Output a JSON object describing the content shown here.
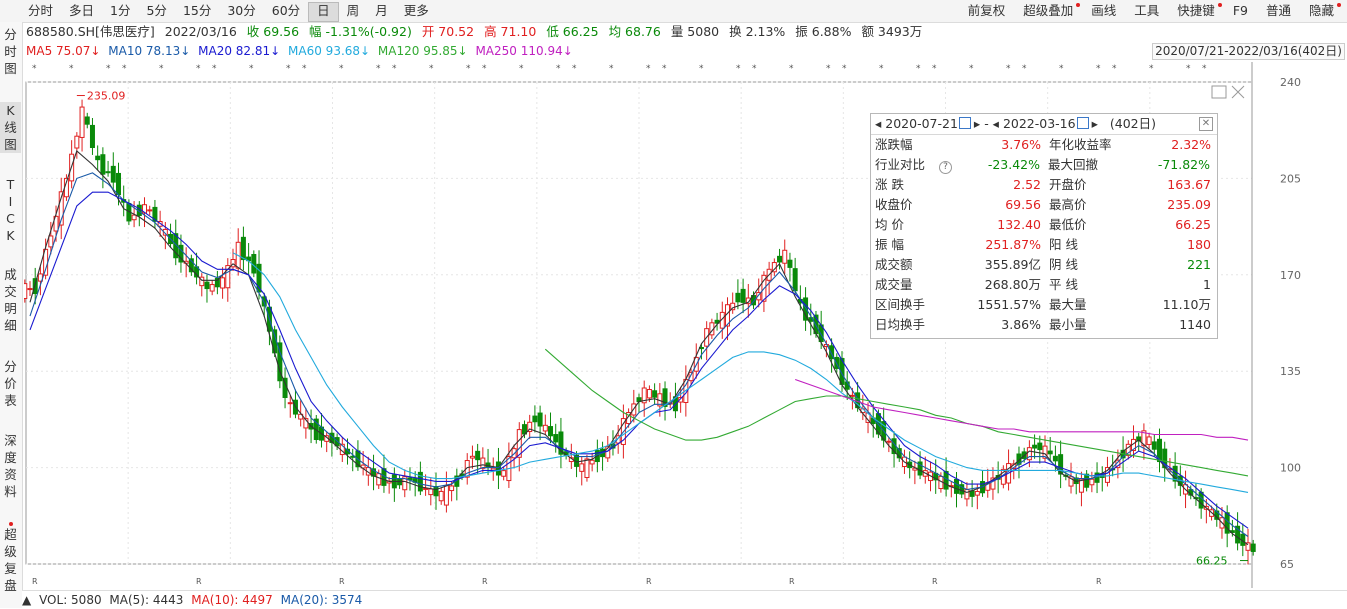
{
  "toolbar": {
    "periods": [
      "分时",
      "多日",
      "1分",
      "5分",
      "15分",
      "30分",
      "60分",
      "日",
      "周",
      "月",
      "更多"
    ],
    "active_period": "日",
    "right_items": [
      "前复权",
      "超级叠加",
      "画线",
      "工具",
      "快捷键",
      "F9",
      "普通",
      "隐藏"
    ]
  },
  "sidebar": {
    "items": [
      {
        "label": "分\n时\n图"
      },
      {
        "label": "K\n线\n图"
      },
      {
        "label": "T\nI\nC\nK"
      },
      {
        "label": "成\n交\n明\n细"
      },
      {
        "label": "分\n价\n表"
      },
      {
        "label": "深\n度\n资\n料"
      },
      {
        "label": "超\n级\n复\n盘"
      }
    ]
  },
  "info": {
    "code": "688580.SH[伟思医疗]",
    "date": "2022/03/16",
    "close": "收 69.56",
    "change": "幅 -1.31%(-0.92)",
    "open": "开 70.52",
    "high": "高 71.10",
    "low": "低 66.25",
    "avg": "均 68.76",
    "volume": "量 5080",
    "turnover": "换 2.13%",
    "amplitude": "振 6.88%",
    "amount": "额 3493万"
  },
  "ma": {
    "ma5": "MA5 75.07↓",
    "ma10": "MA10 78.13↓",
    "ma20": "MA20 82.81↓",
    "ma60": "MA60 93.68↓",
    "ma120": "MA120 95.85↓",
    "ma250": "MA250 110.94↓"
  },
  "range_label": "2020/07/21-2022/03/16(402日)",
  "colors": {
    "up": "#e02020",
    "down": "#0a8a0a",
    "ma5": "#333333",
    "ma10": "#1a5aa8",
    "ma20": "#1a1ad0",
    "ma60": "#22aadd",
    "ma120": "#33aa33",
    "ma250": "#c020c0"
  },
  "chart_data": {
    "type": "candlestick",
    "title": "688580.SH 伟思医疗 日K",
    "ylim": [
      65,
      240
    ],
    "y_ticks": [
      65,
      100,
      135,
      170,
      205,
      240
    ],
    "annotations": {
      "max_label": "235.09",
      "min_label": "66.25"
    },
    "series": [
      {
        "name": "close_trend",
        "values": [
          165,
          185,
          205,
          230,
          210,
          205,
          190,
          195,
          188,
          178,
          172,
          165,
          168,
          180,
          172,
          150,
          125,
          118,
          112,
          110,
          105,
          100,
          96,
          94,
          96,
          92,
          90,
          95,
          105,
          100,
          98,
          112,
          118,
          112,
          104,
          100,
          104,
          108,
          120,
          128,
          125,
          122,
          135,
          150,
          155,
          162,
          160,
          172,
          178,
          158,
          150,
          140,
          128,
          120,
          114,
          106,
          100,
          98,
          95,
          92,
          90,
          94,
          98,
          103,
          108,
          105,
          96,
          94,
          96,
          100,
          108,
          112,
          104,
          96,
          90,
          85,
          80,
          74,
          70
        ]
      },
      {
        "name": "MA5",
        "values": [
          160,
          180,
          198,
          215,
          210,
          204,
          194,
          191,
          187,
          180,
          174,
          168,
          168,
          174,
          170,
          155,
          135,
          122,
          115,
          111,
          106,
          101,
          97,
          95,
          95,
          93,
          92,
          94,
          100,
          101,
          100,
          108,
          114,
          112,
          106,
          102,
          103,
          107,
          116,
          124,
          125,
          123,
          132,
          145,
          152,
          158,
          160,
          168,
          174,
          162,
          152,
          142,
          130,
          122,
          115,
          108,
          102,
          99,
          96,
          93,
          91,
          93,
          97,
          101,
          106,
          105,
          98,
          95,
          96,
          99,
          106,
          110,
          105,
          98,
          92,
          87,
          82,
          76,
          72
        ]
      },
      {
        "name": "MA10",
        "values": [
          155,
          172,
          190,
          205,
          207,
          203,
          197,
          193,
          189,
          183,
          177,
          171,
          169,
          172,
          170,
          160,
          142,
          128,
          118,
          113,
          108,
          103,
          99,
          96,
          96,
          94,
          93,
          94,
          98,
          100,
          100,
          105,
          111,
          111,
          107,
          104,
          104,
          106,
          113,
          120,
          123,
          123,
          130,
          141,
          148,
          154,
          158,
          165,
          171,
          164,
          155,
          145,
          134,
          125,
          118,
          111,
          104,
          101,
          98,
          95,
          92,
          93,
          96,
          100,
          104,
          104,
          99,
          96,
          96,
          98,
          104,
          108,
          105,
          99,
          94,
          89,
          84,
          79,
          75
        ]
      },
      {
        "name": "MA20",
        "values": [
          150,
          165,
          180,
          195,
          200,
          200,
          197,
          194,
          190,
          186,
          181,
          175,
          172,
          172,
          170,
          163,
          150,
          136,
          124,
          117,
          111,
          106,
          102,
          98,
          97,
          96,
          95,
          95,
          97,
          99,
          99,
          103,
          108,
          109,
          107,
          105,
          105,
          106,
          110,
          116,
          120,
          121,
          127,
          136,
          143,
          150,
          155,
          161,
          166,
          163,
          157,
          149,
          139,
          130,
          122,
          115,
          108,
          104,
          101,
          97,
          94,
          94,
          96,
          99,
          102,
          102,
          100,
          98,
          97,
          98,
          102,
          106,
          104,
          100,
          96,
          91,
          86,
          82,
          78
        ]
      },
      {
        "name": "MA60",
        "values": [
          null,
          null,
          null,
          null,
          null,
          null,
          null,
          null,
          null,
          null,
          null,
          null,
          null,
          178,
          175,
          170,
          162,
          150,
          140,
          130,
          122,
          115,
          108,
          102,
          99,
          97,
          96,
          96,
          97,
          98,
          99,
          100,
          102,
          103,
          104,
          105,
          106,
          108,
          112,
          116,
          120,
          124,
          128,
          132,
          136,
          140,
          142,
          142,
          141,
          139,
          136,
          132,
          127,
          123,
          118,
          114,
          110,
          107,
          104,
          102,
          100,
          99,
          99,
          99,
          99,
          99,
          99,
          98,
          97,
          97,
          98,
          98,
          97,
          96,
          95,
          94,
          93,
          92,
          91
        ]
      },
      {
        "name": "MA120",
        "values": [
          null,
          null,
          null,
          null,
          null,
          null,
          null,
          null,
          null,
          null,
          null,
          null,
          null,
          null,
          null,
          null,
          null,
          null,
          null,
          null,
          null,
          null,
          null,
          null,
          null,
          null,
          null,
          null,
          null,
          null,
          null,
          null,
          null,
          143,
          138,
          133,
          128,
          124,
          120,
          117,
          114,
          112,
          110,
          110,
          111,
          113,
          115,
          118,
          121,
          124,
          125,
          126,
          126,
          125,
          124,
          123,
          122,
          121,
          119,
          118,
          116,
          115,
          113,
          112,
          111,
          110,
          109,
          108,
          107,
          106,
          105,
          104,
          103,
          102,
          101,
          100,
          99,
          98,
          97
        ]
      },
      {
        "name": "MA250",
        "values": [
          null,
          null,
          null,
          null,
          null,
          null,
          null,
          null,
          null,
          null,
          null,
          null,
          null,
          null,
          null,
          null,
          null,
          null,
          null,
          null,
          null,
          null,
          null,
          null,
          null,
          null,
          null,
          null,
          null,
          null,
          null,
          null,
          null,
          null,
          null,
          null,
          null,
          null,
          null,
          null,
          null,
          null,
          null,
          null,
          null,
          null,
          null,
          null,
          null,
          132,
          130,
          128,
          126,
          124,
          122,
          121,
          120,
          119,
          118,
          117,
          116,
          115,
          114,
          114,
          113,
          113,
          113,
          113,
          113,
          113,
          113,
          113,
          112,
          112,
          112,
          112,
          111,
          111,
          110
        ]
      }
    ]
  },
  "popup": {
    "start_date": "2020-07-21",
    "end_date": "2022-03-16",
    "days": "(402日)",
    "rows": [
      {
        "k1": "涨跌幅",
        "v1": "3.76%",
        "c1": "red",
        "k2": "年化收益率",
        "v2": "2.32%",
        "c2": "red"
      },
      {
        "k1": "行业对比",
        "v1": "-23.42%",
        "c1": "green",
        "k2": "最大回撤",
        "v2": "-71.82%",
        "c2": "green",
        "q": true
      },
      {
        "k1": "涨  跌",
        "v1": "2.52",
        "c1": "red",
        "k2": "开盘价",
        "v2": "163.67",
        "c2": "red"
      },
      {
        "k1": "收盘价",
        "v1": "69.56",
        "c1": "red",
        "k2": "最高价",
        "v2": "235.09",
        "c2": "red"
      },
      {
        "k1": "均  价",
        "v1": "132.40",
        "c1": "red",
        "k2": "最低价",
        "v2": "66.25",
        "c2": "red"
      },
      {
        "k1": "振  幅",
        "v1": "251.87%",
        "c1": "red",
        "k2": "阳  线",
        "v2": "180",
        "c2": "red"
      },
      {
        "k1": "成交额",
        "v1": "355.89亿",
        "c1": "dark",
        "k2": "阴  线",
        "v2": "221",
        "c2": "green"
      },
      {
        "k1": "成交量",
        "v1": "268.80万",
        "c1": "dark",
        "k2": "平  线",
        "v2": "1",
        "c2": "dark"
      },
      {
        "k1": "区间换手",
        "v1": "1551.57%",
        "c1": "dark",
        "k2": "最大量",
        "v2": "11.10万",
        "c2": "dark"
      },
      {
        "k1": "日均换手",
        "v1": "3.86%",
        "c1": "dark",
        "k2": "最小量",
        "v2": "1140",
        "c2": "dark"
      }
    ]
  },
  "volume_bar": {
    "vol": "VOL: 5080",
    "ma5": "MA(5): 4443",
    "ma10": "MA(10): 4497",
    "ma20": "MA(20): 3574"
  }
}
